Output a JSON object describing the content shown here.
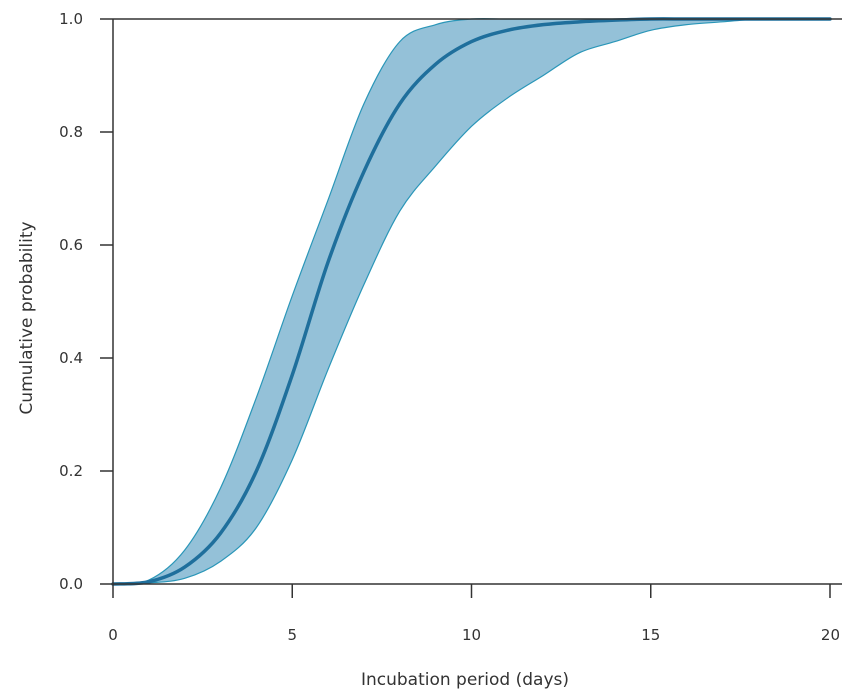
{
  "chart_data": {
    "type": "area",
    "title": "",
    "xlabel": "Incubation period (days)",
    "ylabel": "Cumulative probability",
    "xlim": [
      0,
      20
    ],
    "ylim": [
      0,
      1
    ],
    "xticks": [
      0,
      5,
      10,
      15,
      20
    ],
    "xtick_labels": [
      "0",
      "5",
      "10",
      "15",
      "20"
    ],
    "yticks": [
      0,
      0.2,
      0.4,
      0.6,
      0.8,
      1.0
    ],
    "ytick_labels": [
      "0.0",
      "0.2",
      "0.4",
      "0.6",
      "0.8",
      "1.0"
    ],
    "grid": false,
    "colors": {
      "line": "#1f6f9c",
      "band_fill": "#94c1d8",
      "band_edge": "#2a96b8",
      "axis": "#333333"
    },
    "x": [
      0,
      1,
      2,
      3,
      4,
      5,
      6,
      7,
      8,
      9,
      10,
      11,
      12,
      13,
      14,
      15,
      16,
      17,
      18,
      19,
      20
    ],
    "series": [
      {
        "role": "median",
        "values": [
          0,
          0.004,
          0.03,
          0.09,
          0.2,
          0.37,
          0.57,
          0.73,
          0.85,
          0.92,
          0.96,
          0.98,
          0.99,
          0.995,
          0.998,
          1,
          1,
          1,
          1,
          1,
          1
        ]
      },
      {
        "role": "upper",
        "values": [
          0,
          0.007,
          0.06,
          0.17,
          0.33,
          0.51,
          0.68,
          0.85,
          0.96,
          0.99,
          1,
          1,
          1,
          1,
          1,
          1,
          1,
          1,
          1,
          1,
          1
        ]
      },
      {
        "role": "lower",
        "values": [
          0,
          0.002,
          0.01,
          0.04,
          0.1,
          0.22,
          0.38,
          0.53,
          0.66,
          0.74,
          0.81,
          0.86,
          0.9,
          0.94,
          0.96,
          0.98,
          0.99,
          0.995,
          1,
          1,
          1
        ]
      }
    ]
  }
}
